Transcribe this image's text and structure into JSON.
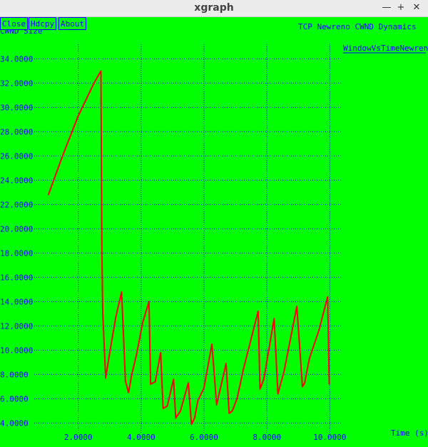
{
  "window": {
    "title": "xgraph",
    "minimize_glyph": "—",
    "maximize_glyph": "+",
    "close_glyph": "✕"
  },
  "toolbar": {
    "close_label": "Close",
    "hdcpy_label": "Hdcpy",
    "about_label": "About"
  },
  "colors": {
    "background": "#00ff00",
    "axis_text": "#0000ff",
    "grid": "#0000ff",
    "series": "#ff0000"
  },
  "chart_data": {
    "type": "line",
    "title": "TCP Newreno CWND Dynamics",
    "xlabel": "Time (s)",
    "ylabel": "CWND Size",
    "xlim": [
      0.6,
      10.4
    ],
    "ylim": [
      3.2,
      35.2
    ],
    "xticks": [
      2,
      4,
      6,
      8,
      10
    ],
    "xtick_labels": [
      "2.0000",
      "4.0000",
      "6.0000",
      "8.0000",
      "10.0000"
    ],
    "yticks": [
      4,
      6,
      8,
      10,
      12,
      14,
      16,
      18,
      20,
      22,
      24,
      26,
      28,
      30,
      32,
      34
    ],
    "ytick_labels": [
      "4.0000",
      "6.0000",
      "8.0000",
      "10.0000",
      "12.0000",
      "14.0000",
      "16.0000",
      "18.0000",
      "20.0000",
      "22.0000",
      "24.0000",
      "26.0000",
      "28.0000",
      "30.0000",
      "32.0000",
      "34.0000"
    ],
    "grid": true,
    "legend_position": "top-right",
    "series": [
      {
        "name": "WindowVsTimeNewreno",
        "color": "#ff0000",
        "x": [
          1.05,
          1.5,
          2.0,
          2.5,
          2.72,
          2.75,
          2.78,
          2.87,
          3.0,
          3.2,
          3.38,
          3.5,
          3.6,
          3.7,
          3.85,
          4.05,
          4.25,
          4.3,
          4.45,
          4.62,
          4.7,
          4.83,
          5.03,
          5.1,
          5.25,
          5.5,
          5.6,
          5.7,
          5.8,
          6.0,
          6.25,
          6.4,
          6.7,
          6.8,
          6.9,
          7.05,
          7.25,
          7.72,
          7.78,
          7.9,
          8.23,
          8.35,
          8.55,
          8.95,
          9.13,
          9.2,
          9.35,
          9.65,
          9.93,
          9.98
        ],
        "y": [
          22.8,
          26.0,
          29.3,
          32.0,
          33.0,
          18.0,
          13.0,
          7.7,
          9.8,
          12.8,
          14.8,
          7.5,
          6.5,
          8.0,
          9.6,
          12.3,
          14.0,
          7.2,
          7.4,
          9.8,
          5.2,
          5.4,
          7.6,
          4.4,
          5.0,
          7.3,
          3.9,
          4.4,
          5.8,
          6.9,
          10.5,
          5.5,
          8.9,
          4.8,
          5.0,
          6.0,
          8.4,
          13.2,
          6.8,
          7.6,
          12.6,
          6.4,
          8.3,
          13.6,
          7.0,
          7.3,
          9.3,
          11.6,
          14.4,
          7.2
        ]
      }
    ]
  }
}
